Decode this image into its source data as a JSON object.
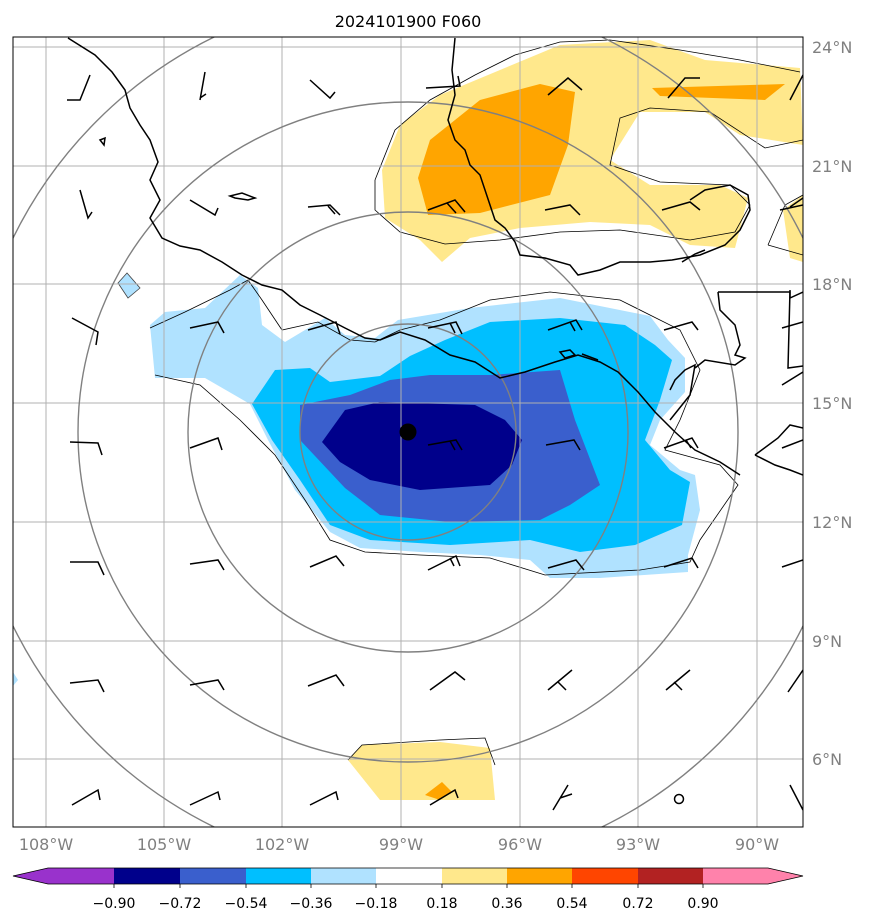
{
  "title": "2024101900 F060",
  "lon_labels": [
    "108°W",
    "105°W",
    "102°W",
    "99°W",
    "96°W",
    "93°W",
    "90°W"
  ],
  "lat_labels": [
    "24°N",
    "21°N",
    "18°N",
    "15°N",
    "12°N",
    "9°N",
    "6°N"
  ],
  "colorbar": {
    "tick_labels": [
      "−0.90",
      "−0.72",
      "−0.54",
      "−0.36",
      "−0.18",
      "0.18",
      "0.36",
      "0.54",
      "0.72",
      "0.90"
    ],
    "colors": [
      "#9932cc",
      "#00008b",
      "#3a5fcd",
      "#00bfff",
      "#b0e2ff",
      "#ffffff",
      "#ffe88c",
      "#ffa500",
      "#ff4500",
      "#b22222",
      "#ff82ab"
    ]
  },
  "map_extent": {
    "lon_min": -108.8,
    "lon_max": -88.8,
    "lat_min": 4.9,
    "lat_max": 24.2
  },
  "storm_center": {
    "lon": -98.9,
    "lat": 14.3
  },
  "range_ring_spacing_deg": 3
}
